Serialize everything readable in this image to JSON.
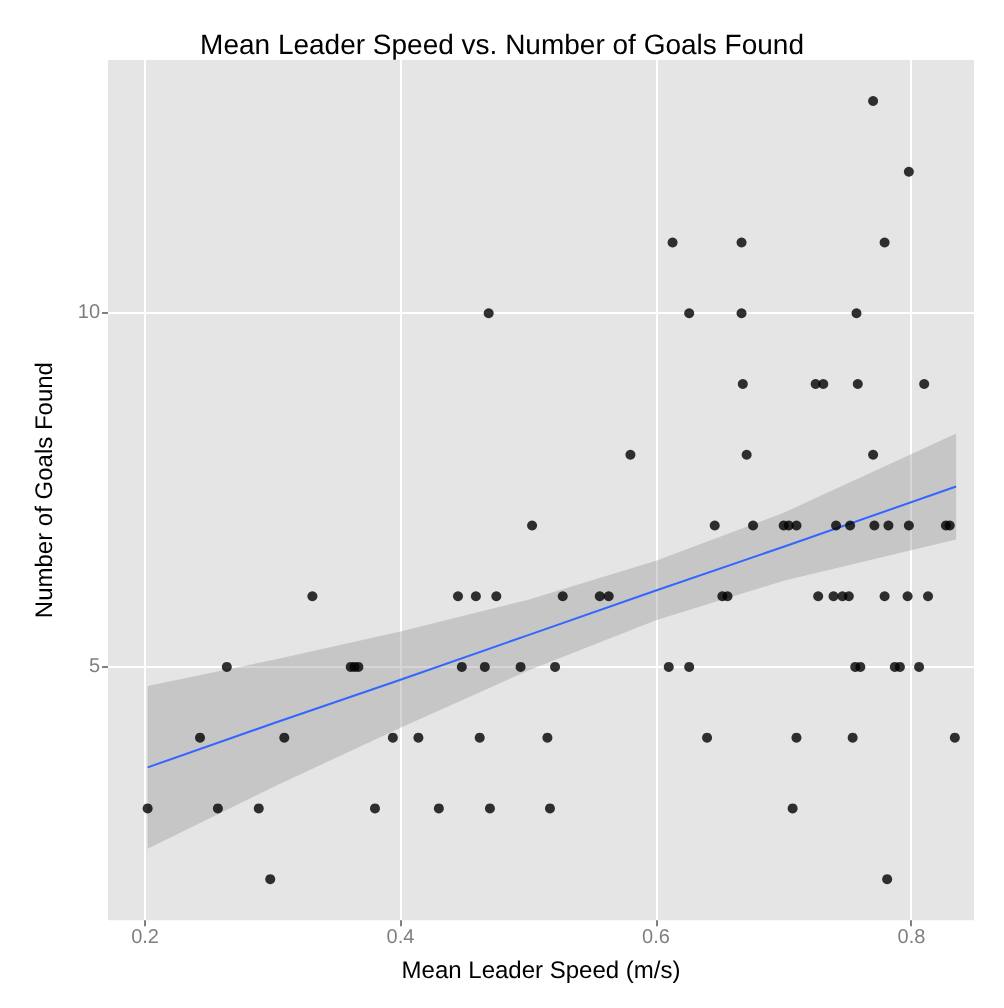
{
  "chart_data": {
    "type": "scatter",
    "title": "Mean Leader Speed vs. Number of Goals Found",
    "xlabel": "Mean Leader Speed (m/s)",
    "ylabel": "Number of Goals Found",
    "xlim": [
      0.171,
      0.849
    ],
    "ylim": [
      1.42,
      13.58
    ],
    "xticks": [
      0.2,
      0.4,
      0.6,
      0.8
    ],
    "yticks": [
      5,
      10
    ],
    "grid": true,
    "marker": "circle",
    "series": [
      {
        "color": "#000000",
        "x": [
          0.77,
          0.798,
          0.613,
          0.667,
          0.779,
          0.469,
          0.626,
          0.667,
          0.757,
          0.668,
          0.725,
          0.731,
          0.758,
          0.81,
          0.58,
          0.671,
          0.77,
          0.503,
          0.646,
          0.676,
          0.7,
          0.704,
          0.71,
          0.741,
          0.752,
          0.771,
          0.782,
          0.798,
          0.827,
          0.83,
          0.331,
          0.445,
          0.459,
          0.475,
          0.527,
          0.556,
          0.563,
          0.652,
          0.656,
          0.727,
          0.739,
          0.746,
          0.751,
          0.779,
          0.797,
          0.813,
          0.264,
          0.361,
          0.364,
          0.367,
          0.448,
          0.466,
          0.494,
          0.521,
          0.61,
          0.626,
          0.756,
          0.76,
          0.787,
          0.791,
          0.806,
          0.243,
          0.309,
          0.394,
          0.414,
          0.462,
          0.515,
          0.64,
          0.71,
          0.754,
          0.834,
          0.202,
          0.257,
          0.289,
          0.38,
          0.43,
          0.47,
          0.517,
          0.707,
          0.298,
          0.781
        ],
        "values": [
          13,
          12,
          11,
          11,
          11,
          10,
          10,
          10,
          10,
          9,
          9,
          9,
          9,
          9,
          8,
          8,
          8,
          7,
          7,
          7,
          7,
          7,
          7,
          7,
          7,
          7,
          7,
          7,
          7,
          7,
          6,
          6,
          6,
          6,
          6,
          6,
          6,
          6,
          6,
          6,
          6,
          6,
          6,
          6,
          6,
          6,
          5,
          5,
          5,
          5,
          5,
          5,
          5,
          5,
          5,
          5,
          5,
          5,
          5,
          5,
          5,
          4,
          4,
          4,
          4,
          4,
          4,
          4,
          4,
          4,
          4,
          3,
          3,
          3,
          3,
          3,
          3,
          3,
          3,
          2,
          2
        ]
      },
      {
        "type": "line",
        "color": "#3366ff",
        "marker": "none",
        "line_style": "solid",
        "x": [
          0.202,
          0.3,
          0.4,
          0.5,
          0.6,
          0.7,
          0.835
        ],
        "values": [
          3.58,
          4.2,
          4.82,
          5.45,
          6.08,
          6.7,
          7.55
        ],
        "lower": [
          2.43,
          3.3,
          4.14,
          4.95,
          5.66,
          6.22,
          6.8
        ],
        "upper": [
          4.73,
          5.1,
          5.5,
          5.95,
          6.5,
          7.18,
          8.3
        ]
      }
    ]
  }
}
